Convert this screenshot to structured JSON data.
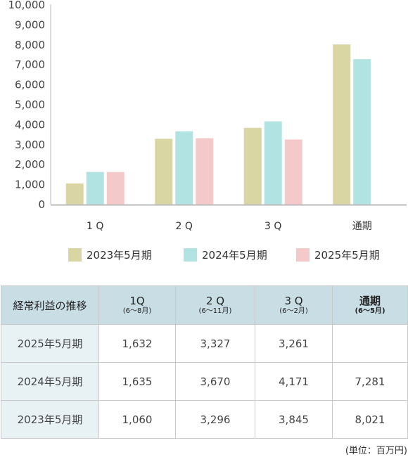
{
  "chart_data": {
    "type": "bar",
    "categories": [
      "1Q",
      "2Q",
      "3Q",
      "通期"
    ],
    "category_labels": [
      "1 Q",
      "2 Q",
      "3 Q",
      "通期"
    ],
    "ylim": [
      0,
      10000
    ],
    "yticks": [
      "0",
      "1,000",
      "2,000",
      "3,000",
      "4,000",
      "5,000",
      "6,000",
      "7,000",
      "8,000",
      "9,000",
      "10,000"
    ],
    "grid": false,
    "legend_position": "bottom",
    "series": [
      {
        "name": "2023年5月期",
        "color": "#d9d6a4",
        "values": [
          1060,
          3296,
          3845,
          8021
        ]
      },
      {
        "name": "2024年5月期",
        "color": "#b2e3e3",
        "values": [
          1635,
          3670,
          4171,
          7281
        ]
      },
      {
        "name": "2025年5月期",
        "color": "#f4c9ca",
        "values": [
          1632,
          3327,
          3261,
          null
        ]
      }
    ]
  },
  "table": {
    "corner": "経常利益の推移",
    "columns": [
      {
        "main": "1Q",
        "sub": "(6～8月)"
      },
      {
        "main": "2 Q",
        "sub": "(6～11月)"
      },
      {
        "main": "3 Q",
        "sub": "(6～2月)"
      },
      {
        "main": "通期",
        "sub": "(6～5月)"
      }
    ],
    "rows": [
      {
        "label": "2025年5月期",
        "values": [
          "1,632",
          "3,327",
          "3,261",
          ""
        ]
      },
      {
        "label": "2024年5月期",
        "values": [
          "1,635",
          "3,670",
          "4,171",
          "7,281"
        ]
      },
      {
        "label": "2023年5月期",
        "values": [
          "1,060",
          "3,296",
          "3,845",
          "8,021"
        ]
      }
    ]
  },
  "unit_note": "(単位：百万円)"
}
